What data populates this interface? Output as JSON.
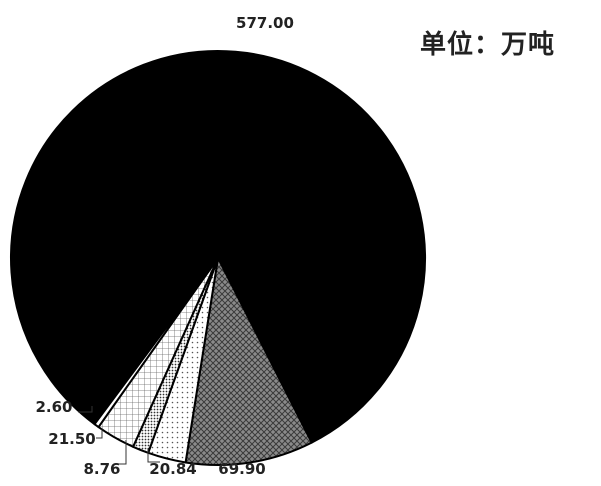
{
  "unit_label": "单位：万吨",
  "chart_data": {
    "type": "pie",
    "title": "",
    "slices": [
      {
        "label": "577.00",
        "value": 577.0,
        "fill": "solid",
        "color": "#000000"
      },
      {
        "label": "69.90",
        "value": 69.9,
        "fill": "crosshatch",
        "color": "#6e6e6e"
      },
      {
        "label": "20.84",
        "value": 20.84,
        "fill": "dots",
        "color": "#ffffff"
      },
      {
        "label": "8.76",
        "value": 8.76,
        "fill": "dots-dense",
        "color": "#999999"
      },
      {
        "label": "21.50",
        "value": 21.5,
        "fill": "grid",
        "color": "#ffffff"
      },
      {
        "label": "2.60",
        "value": 2.6,
        "fill": "solid",
        "color": "#ffffff"
      }
    ],
    "legend": "none",
    "stroke_color": "#000000"
  }
}
